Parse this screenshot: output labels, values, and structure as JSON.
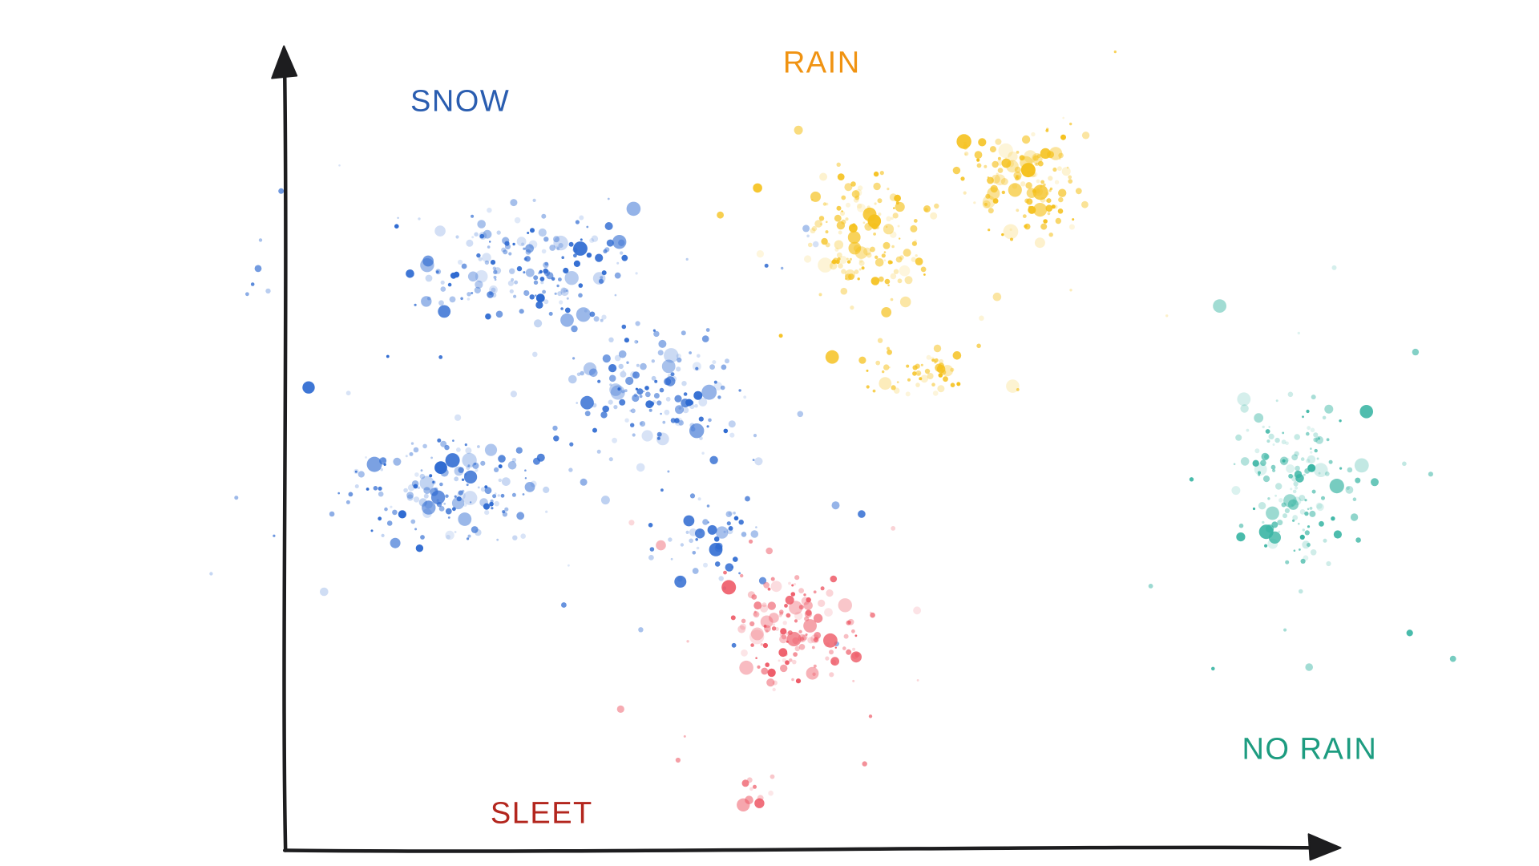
{
  "chart_data": {
    "type": "scatter",
    "title": "",
    "xlabel": "",
    "ylabel": "",
    "axes": {
      "style": "hand-drawn black arrows",
      "ticks": false,
      "grid": false,
      "x_range": [
        0,
        1
      ],
      "y_range": [
        0,
        1
      ],
      "axis_color": "#1d1d1f",
      "origin": {
        "x": 0.185,
        "y": 0.982
      },
      "x_arrow_tip": {
        "x": 0.868,
        "y": 0.979
      },
      "y_arrow_tip": {
        "x": 0.185,
        "y": 0.057
      }
    },
    "legend": "labels placed beside clusters, no legend box",
    "clusters": [
      {
        "name": "snow",
        "label": "SNOW",
        "label_color": "#2a5db0",
        "dot_color": "#2e6ad1",
        "label_pos": {
          "x": 0.299,
          "y": 0.118
        },
        "approx_count": 575,
        "blobs": [
          {
            "cx": 0.345,
            "cy": 0.315,
            "rx": 0.105,
            "ry": 0.095,
            "n": 190
          },
          {
            "cx": 0.295,
            "cy": 0.565,
            "rx": 0.09,
            "ry": 0.095,
            "n": 170
          },
          {
            "cx": 0.425,
            "cy": 0.46,
            "rx": 0.08,
            "ry": 0.105,
            "n": 160
          },
          {
            "cx": 0.465,
            "cy": 0.625,
            "rx": 0.045,
            "ry": 0.075,
            "n": 55
          }
        ]
      },
      {
        "name": "rain",
        "label": "RAIN",
        "label_color": "#f09312",
        "dot_color": "#f5c11d",
        "label_pos": {
          "x": 0.534,
          "y": 0.073
        },
        "approx_count": 340,
        "blobs": [
          {
            "cx": 0.568,
            "cy": 0.275,
            "rx": 0.06,
            "ry": 0.105,
            "n": 150
          },
          {
            "cx": 0.668,
            "cy": 0.21,
            "rx": 0.055,
            "ry": 0.09,
            "n": 135
          },
          {
            "cx": 0.6,
            "cy": 0.43,
            "rx": 0.05,
            "ry": 0.055,
            "n": 55
          }
        ]
      },
      {
        "name": "sleet",
        "label": "SLEET",
        "label_color": "#b3261e",
        "dot_color": "#ee5b68",
        "label_pos": {
          "x": 0.352,
          "y": 0.94
        },
        "approx_count": 160,
        "blobs": [
          {
            "cx": 0.515,
            "cy": 0.73,
            "rx": 0.065,
            "ry": 0.09,
            "n": 150
          },
          {
            "cx": 0.487,
            "cy": 0.915,
            "rx": 0.018,
            "ry": 0.03,
            "n": 10
          }
        ]
      },
      {
        "name": "no_rain",
        "label": "NO RAIN",
        "label_color": "#1d9c80",
        "dot_color": "#3ab5a4",
        "label_pos": {
          "x": 0.851,
          "y": 0.866
        },
        "approx_count": 160,
        "blobs": [
          {
            "cx": 0.838,
            "cy": 0.55,
            "rx": 0.06,
            "ry": 0.135,
            "n": 160
          }
        ]
      }
    ]
  }
}
